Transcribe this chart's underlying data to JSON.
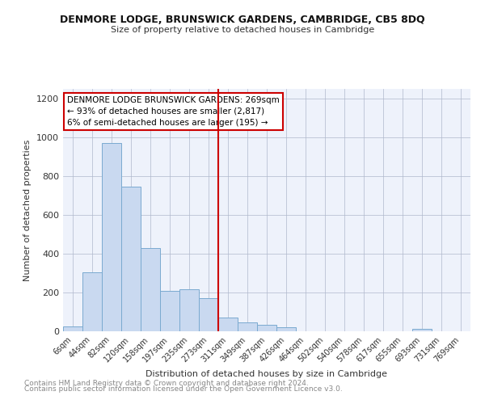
{
  "title": "DENMORE LODGE, BRUNSWICK GARDENS, CAMBRIDGE, CB5 8DQ",
  "subtitle": "Size of property relative to detached houses in Cambridge",
  "xlabel": "Distribution of detached houses by size in Cambridge",
  "ylabel": "Number of detached properties",
  "bar_labels": [
    "6sqm",
    "44sqm",
    "82sqm",
    "120sqm",
    "158sqm",
    "197sqm",
    "235sqm",
    "273sqm",
    "311sqm",
    "349sqm",
    "387sqm",
    "426sqm",
    "464sqm",
    "502sqm",
    "540sqm",
    "578sqm",
    "617sqm",
    "655sqm",
    "693sqm",
    "731sqm",
    "769sqm"
  ],
  "bar_values": [
    25,
    305,
    970,
    745,
    430,
    210,
    215,
    170,
    72,
    47,
    33,
    20,
    0,
    0,
    0,
    0,
    0,
    0,
    12,
    0,
    0
  ],
  "bar_color": "#c9d9f0",
  "bar_edge_color": "#7aaad0",
  "reference_line_color": "#cc0000",
  "annotation_text": "DENMORE LODGE BRUNSWICK GARDENS: 269sqm\n← 93% of detached houses are smaller (2,817)\n6% of semi-detached houses are larger (195) →",
  "annotation_box_color": "#ffffff",
  "annotation_box_edge_color": "#cc0000",
  "ylim": [
    0,
    1250
  ],
  "yticks": [
    0,
    200,
    400,
    600,
    800,
    1000,
    1200
  ],
  "footnote1": "Contains HM Land Registry data © Crown copyright and database right 2024.",
  "footnote2": "Contains public sector information licensed under the Open Government Licence v3.0.",
  "plot_bg_color": "#eef2fb"
}
